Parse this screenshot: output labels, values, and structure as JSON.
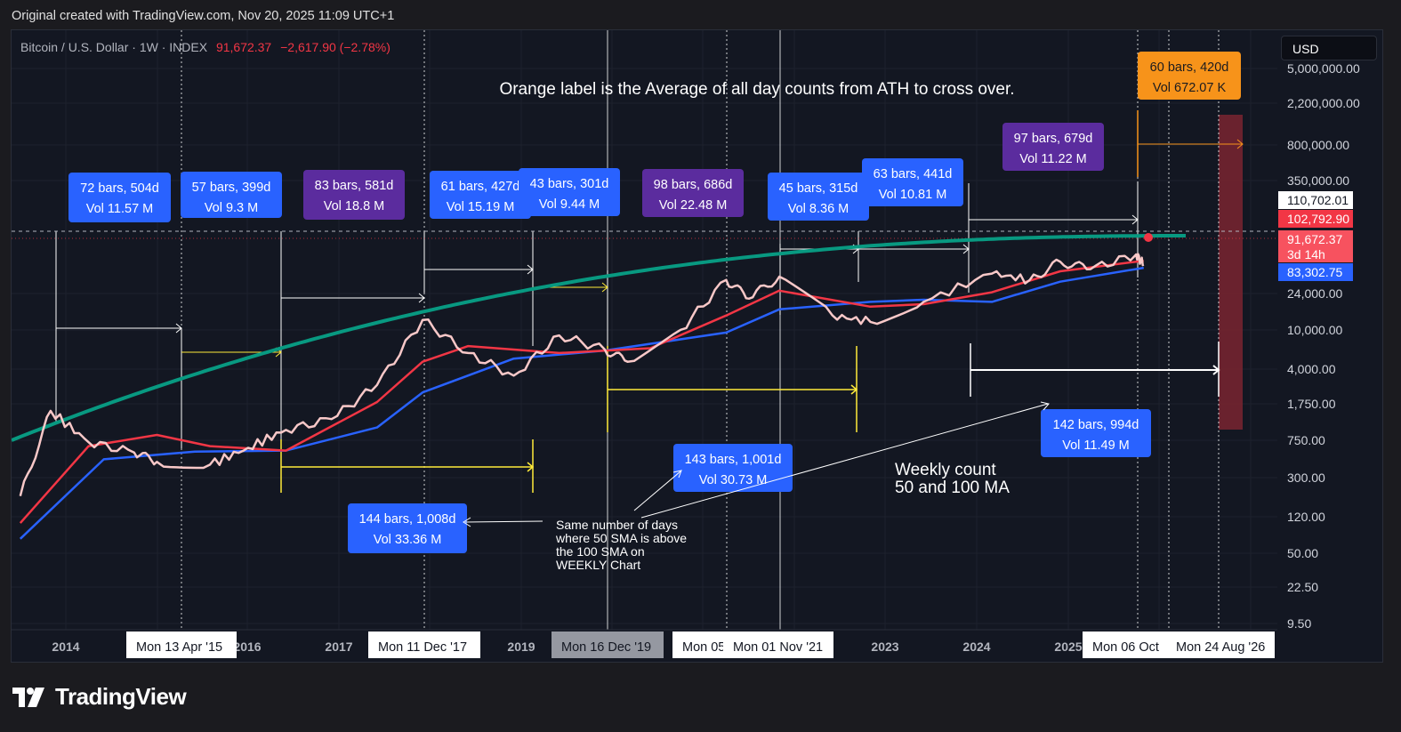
{
  "header": {
    "text": "Original created with TradingView.com, Nov 20, 2025 11:09 UTC+1"
  },
  "symbol": {
    "name": "Bitcoin / U.S. Dollar · 1W · INDEX",
    "price": "91,672.37",
    "change": "−2,617.90 (−2.78%)"
  },
  "currency": "USD",
  "footer": {
    "brand": "TradingView"
  },
  "annotations": {
    "title": "Orange label is the Average of all day counts from ATH to cross over.",
    "note": [
      "Same number of days",
      "where 50 SMA is above",
      "the 100 SMA on",
      "WEEKLY Chart"
    ],
    "weekly": [
      "Weekly count",
      "50 and 100 MA"
    ]
  },
  "colors": {
    "background": "#131722",
    "page": "#1b1b1f",
    "price": "#f8c8c8",
    "sma50": "#f23645",
    "sma100": "#2962ff",
    "curve": "#089981",
    "blue_label": "#2962ff",
    "purple_label": "#5b2c9e",
    "orange_label": "#f7931a",
    "yellow": "#ffeb3b",
    "projection_box": "#7a2430"
  },
  "chart_data": {
    "type": "line",
    "title": "Bitcoin / U.S. Dollar · 1W · INDEX",
    "scale": "log",
    "x_ticks": [
      "2014",
      "2016",
      "2017",
      "2019",
      "2023",
      "2024",
      "2025"
    ],
    "date_flags": [
      {
        "text": "Mon 13 Apr '15",
        "style": "white"
      },
      {
        "text": "Mon 11 Dec '17",
        "style": "white"
      },
      {
        "text": "Mon 16 Dec '19",
        "style": "gray"
      },
      {
        "text": "Mon 05",
        "style": "white"
      },
      {
        "text": "Mon 01 Nov '21",
        "style": "white"
      },
      {
        "text": "Mon 06 Oct",
        "style": "white"
      },
      {
        "text": "Mon 24 Aug '26",
        "style": "white"
      }
    ],
    "y_ticks": [
      "5,000,000.00",
      "2,200,000.00",
      "800,000.00",
      "350,000.00",
      "24,000.00",
      "10,000.00",
      "4,000.00",
      "1,750.00",
      "750.00",
      "300.00",
      "120.00",
      "50.00",
      "22.50",
      "9.50"
    ],
    "price_tags": [
      {
        "text": "110,702.01",
        "style": "white"
      },
      {
        "text": "102,792.90",
        "style": "red"
      },
      {
        "text": "91,672.37",
        "sub": "3d 14h",
        "style": "lightred"
      },
      {
        "text": "83,302.75",
        "style": "blue"
      }
    ],
    "series": [
      {
        "name": "BTCUSD",
        "x": [
          "2013-07",
          "2013-11",
          "2014-04",
          "2014-10",
          "2015-01",
          "2015-08",
          "2016-01",
          "2016-06",
          "2016-12",
          "2017-06",
          "2017-12",
          "2018-06",
          "2018-12",
          "2019-06",
          "2019-12",
          "2020-03",
          "2020-10",
          "2021-04",
          "2021-07",
          "2021-11",
          "2022-06",
          "2022-11",
          "2023-06",
          "2024-03",
          "2024-08",
          "2024-12",
          "2025-04",
          "2025-10",
          "2025-11"
        ],
        "values": [
          90,
          1150,
          450,
          330,
          250,
          230,
          380,
          650,
          900,
          2500,
          17500,
          6500,
          3300,
          11000,
          7200,
          5000,
          13000,
          58000,
          33000,
          64000,
          20000,
          16500,
          30000,
          70000,
          58000,
          100000,
          80000,
          124000,
          91672
        ]
      },
      {
        "name": "50 SMA",
        "x": [
          "2013-07",
          "2014-04",
          "2015-01",
          "2015-08",
          "2016-06",
          "2017-06",
          "2017-12",
          "2018-06",
          "2019-06",
          "2020-06",
          "2021-04",
          "2021-11",
          "2022-11",
          "2023-06",
          "2024-03",
          "2024-12",
          "2025-11"
        ],
        "values": [
          40,
          400,
          560,
          400,
          350,
          1500,
          5000,
          8000,
          6500,
          7500,
          20000,
          42000,
          26000,
          28000,
          40000,
          75000,
          102792
        ]
      },
      {
        "name": "100 SMA",
        "x": [
          "2013-07",
          "2014-06",
          "2015-06",
          "2016-06",
          "2017-06",
          "2017-12",
          "2018-12",
          "2019-12",
          "2021-04",
          "2021-11",
          "2022-11",
          "2023-06",
          "2024-03",
          "2024-12",
          "2025-11"
        ],
        "values": [
          25,
          270,
          340,
          350,
          700,
          2000,
          5500,
          7000,
          12000,
          24000,
          30000,
          32000,
          30000,
          55000,
          83302
        ]
      }
    ],
    "labels": [
      {
        "text": [
          "72 bars, 504d",
          "Vol 11.57 M"
        ],
        "color": "blue"
      },
      {
        "text": [
          "57 bars, 399d",
          "Vol 9.3 M"
        ],
        "color": "blue"
      },
      {
        "text": [
          "83 bars, 581d",
          "Vol 18.8 M"
        ],
        "color": "purple"
      },
      {
        "text": [
          "61 bars, 427d",
          "Vol 15.19 M"
        ],
        "color": "blue"
      },
      {
        "text": [
          "43 bars, 301d",
          "Vol 9.44 M"
        ],
        "color": "blue"
      },
      {
        "text": [
          "98 bars, 686d",
          "Vol 22.48 M"
        ],
        "color": "purple"
      },
      {
        "text": [
          "45 bars, 315d",
          "Vol 8.36 M"
        ],
        "color": "blue"
      },
      {
        "text": [
          "63 bars, 441d",
          "Vol 10.81 M"
        ],
        "color": "blue"
      },
      {
        "text": [
          "97 bars, 679d",
          "Vol 11.22 M"
        ],
        "color": "purple"
      },
      {
        "text": [
          "60 bars, 420d",
          "Vol 672.07 K"
        ],
        "color": "orange"
      },
      {
        "text": [
          "144 bars, 1,008d",
          "Vol 33.36 M"
        ],
        "color": "blue"
      },
      {
        "text": [
          "143 bars, 1,001d",
          "Vol 30.73 M"
        ],
        "color": "blue"
      },
      {
        "text": [
          "142 bars, 994d",
          "Vol 11.49 M"
        ],
        "color": "blue"
      }
    ]
  }
}
